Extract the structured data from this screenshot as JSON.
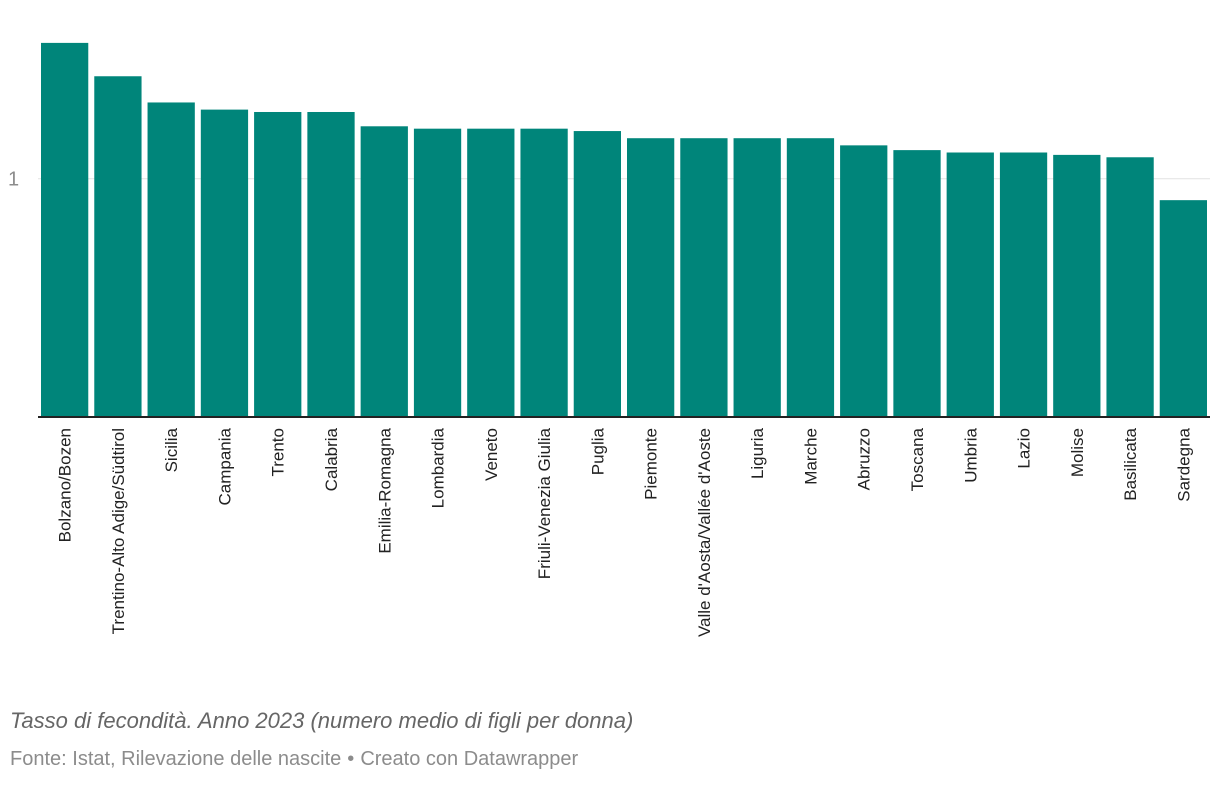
{
  "chart_data": {
    "type": "bar",
    "title": "",
    "xlabel": "",
    "ylabel": "",
    "categories": [
      "Bolzano/Bozen",
      "Trentino-Alto Adige/Südtirol",
      "Sicilia",
      "Campania",
      "Trento",
      "Calabria",
      "Emilia-Romagna",
      "Lombardia",
      "Veneto",
      "Friuli-Venezia Giulia",
      "Puglia",
      "Piemonte",
      "Valle d'Aosta/Vallée d'Aoste",
      "Liguria",
      "Marche",
      "Abruzzo",
      "Toscana",
      "Umbria",
      "Lazio",
      "Molise",
      "Basilicata",
      "Sardegna"
    ],
    "values": [
      1.57,
      1.43,
      1.32,
      1.29,
      1.28,
      1.28,
      1.22,
      1.21,
      1.21,
      1.21,
      1.2,
      1.17,
      1.17,
      1.17,
      1.17,
      1.14,
      1.12,
      1.11,
      1.11,
      1.1,
      1.09,
      0.91
    ],
    "ylim": [
      0,
      1.75
    ],
    "yticks": [
      1
    ],
    "ytick_labels": [
      "1"
    ],
    "grid": true,
    "bar_color": "#00857a"
  },
  "caption": {
    "title": "Tasso di fecondità. Anno 2023 (numero medio di figli per donna)",
    "source": "Fonte: Istat, Rilevazione delle nascite",
    "separator": "•",
    "credit": "Creato con Datawrapper"
  }
}
